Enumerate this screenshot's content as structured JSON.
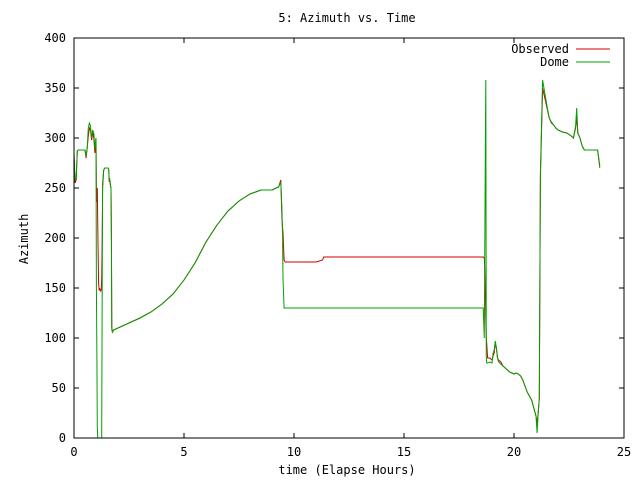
{
  "chart_data": {
    "type": "line",
    "title": "5: Azimuth vs. Time",
    "xlabel": "time (Elapse Hours)",
    "ylabel": "Azimuth",
    "xlim": [
      0,
      25
    ],
    "ylim": [
      0,
      400
    ],
    "xticks": [
      0,
      5,
      10,
      15,
      20,
      25
    ],
    "yticks": [
      0,
      50,
      100,
      150,
      200,
      250,
      300,
      350,
      400
    ],
    "grid": false,
    "legend_position": "top-right",
    "series": [
      {
        "name": "Observed",
        "color": "#cc0000",
        "x": [
          0.0,
          0.05,
          0.1,
          0.15,
          0.2,
          0.3,
          0.4,
          0.5,
          0.55,
          0.6,
          0.65,
          0.7,
          0.75,
          0.8,
          0.85,
          0.9,
          0.95,
          1.0,
          1.02,
          1.04,
          1.06,
          1.08,
          1.1,
          1.12,
          1.14,
          1.16,
          1.18,
          1.2,
          1.22,
          1.24,
          1.26,
          1.28,
          1.3,
          1.35,
          1.4,
          1.45,
          1.5,
          1.55,
          1.58,
          1.6,
          1.62,
          1.64,
          1.66,
          1.68,
          1.7,
          1.72,
          1.75,
          1.8,
          2.0,
          2.5,
          3.0,
          3.5,
          4.0,
          4.5,
          5.0,
          5.5,
          6.0,
          6.5,
          7.0,
          7.5,
          8.0,
          8.5,
          9.0,
          9.3,
          9.4,
          9.45,
          9.48,
          9.5,
          9.55,
          9.6,
          9.7,
          9.8,
          10.0,
          11.0,
          11.3,
          11.35,
          12.0,
          13.0,
          14.0,
          15.0,
          16.0,
          17.0,
          18.0,
          18.6,
          18.65,
          18.7,
          18.72,
          18.74,
          18.76,
          18.8,
          18.9,
          19.0,
          19.05,
          19.1,
          19.15,
          19.2,
          19.25,
          19.3,
          19.4,
          19.5,
          19.6,
          19.7,
          19.8,
          19.9,
          20.0,
          20.1,
          20.2,
          20.3,
          20.4,
          20.5,
          20.6,
          20.7,
          20.8,
          20.9,
          21.0,
          21.05,
          21.1,
          21.15,
          21.2,
          21.3,
          21.4,
          21.5,
          21.6,
          21.7,
          21.8,
          21.9,
          22.0,
          22.2,
          22.4,
          22.6,
          22.7,
          22.75,
          22.8,
          22.85,
          22.9,
          23.0,
          23.05,
          23.1,
          23.2,
          23.4,
          23.6,
          23.8,
          23.9
        ],
        "y": [
          285,
          255,
          258,
          287,
          288,
          288,
          288,
          288,
          280,
          290,
          302,
          310,
          308,
          298,
          305,
          300,
          285,
          300,
          250,
          236,
          250,
          210,
          180,
          155,
          148,
          148,
          149,
          148,
          147,
          149,
          160,
          200,
          250,
          268,
          270,
          270,
          270,
          270,
          268,
          256,
          258,
          256,
          252,
          250,
          200,
          110,
          106,
          108,
          110,
          115,
          120,
          126,
          134,
          144,
          158,
          175,
          196,
          213,
          227,
          237,
          244,
          248,
          248,
          251,
          258,
          220,
          210,
          205,
          178,
          176,
          176,
          176,
          176,
          176,
          178,
          181,
          181,
          181,
          181,
          181,
          181,
          181,
          181,
          181,
          180,
          150,
          120,
          100,
          95,
          80,
          80,
          78,
          82,
          85,
          95,
          90,
          80,
          78,
          76,
          72,
          70,
          68,
          66,
          65,
          64,
          65,
          64,
          62,
          58,
          52,
          46,
          42,
          38,
          30,
          22,
          15,
          25,
          40,
          260,
          350,
          340,
          330,
          320,
          315,
          313,
          310,
          308,
          306,
          305,
          302,
          300,
          305,
          310,
          322,
          305,
          300,
          296,
          292,
          288,
          288,
          288,
          288,
          272
        ]
      },
      {
        "name": "Dome",
        "color": "#00a000",
        "x": [
          0.0,
          0.05,
          0.1,
          0.15,
          0.2,
          0.3,
          0.4,
          0.5,
          0.55,
          0.6,
          0.65,
          0.7,
          0.75,
          0.8,
          0.85,
          0.9,
          0.95,
          1.0,
          1.02,
          1.04,
          1.06,
          1.08,
          1.1,
          1.12,
          1.14,
          1.16,
          1.18,
          1.2,
          1.22,
          1.24,
          1.26,
          1.28,
          1.3,
          1.35,
          1.4,
          1.45,
          1.5,
          1.55,
          1.58,
          1.6,
          1.62,
          1.64,
          1.66,
          1.68,
          1.7,
          1.72,
          1.75,
          1.8,
          2.0,
          2.5,
          3.0,
          3.5,
          4.0,
          4.5,
          5.0,
          5.5,
          6.0,
          6.5,
          7.0,
          7.5,
          8.0,
          8.5,
          9.0,
          9.3,
          9.4,
          9.45,
          9.48,
          9.5,
          9.55,
          9.6,
          9.7,
          9.8,
          10.0,
          11.0,
          11.3,
          11.35,
          12.0,
          13.0,
          14.0,
          15.0,
          16.0,
          17.0,
          18.0,
          18.6,
          18.65,
          18.7,
          18.72,
          18.74,
          18.76,
          18.8,
          18.9,
          19.0,
          19.05,
          19.1,
          19.15,
          19.2,
          19.25,
          19.3,
          19.4,
          19.5,
          19.6,
          19.7,
          19.8,
          19.9,
          20.0,
          20.1,
          20.2,
          20.3,
          20.4,
          20.5,
          20.6,
          20.7,
          20.8,
          20.9,
          21.0,
          21.05,
          21.1,
          21.15,
          21.2,
          21.3,
          21.4,
          21.5,
          21.6,
          21.7,
          21.8,
          21.9,
          22.0,
          22.2,
          22.4,
          22.6,
          22.7,
          22.75,
          22.8,
          22.85,
          22.9,
          23.0,
          23.05,
          23.1,
          23.2,
          23.4,
          23.6,
          23.8,
          23.9
        ],
        "y": [
          280,
          258,
          260,
          287,
          288,
          288,
          288,
          288,
          282,
          290,
          310,
          315,
          312,
          300,
          308,
          305,
          290,
          300,
          150,
          80,
          10,
          0,
          0,
          0,
          0,
          0,
          0,
          0,
          0,
          0,
          0,
          150,
          255,
          268,
          270,
          270,
          270,
          270,
          268,
          258,
          260,
          256,
          252,
          250,
          200,
          108,
          106,
          108,
          110,
          115,
          120,
          126,
          134,
          144,
          158,
          175,
          196,
          213,
          227,
          237,
          244,
          248,
          248,
          251,
          256,
          230,
          200,
          160,
          130,
          130,
          130,
          130,
          130,
          130,
          130,
          130,
          130,
          130,
          130,
          130,
          130,
          130,
          130,
          130,
          100,
          300,
          358,
          80,
          75,
          75,
          76,
          75,
          85,
          88,
          97,
          90,
          80,
          76,
          74,
          72,
          70,
          68,
          66,
          65,
          64,
          65,
          64,
          62,
          58,
          52,
          46,
          42,
          38,
          30,
          22,
          5,
          25,
          40,
          265,
          358,
          345,
          332,
          320,
          316,
          313,
          310,
          308,
          306,
          305,
          302,
          300,
          306,
          312,
          330,
          305,
          300,
          296,
          292,
          288,
          288,
          288,
          288,
          270
        ]
      }
    ]
  }
}
